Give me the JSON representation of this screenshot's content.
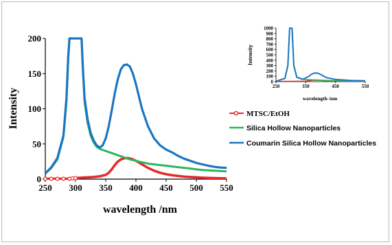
{
  "chart_data": [
    {
      "type": "line",
      "xlabel": "wavelength /nm",
      "ylabel": "Intensity",
      "xlim": [
        250,
        550
      ],
      "ylim": [
        0,
        200
      ],
      "xticks": [
        "250",
        "300",
        "350",
        "400",
        "450",
        "500",
        "550"
      ],
      "yticks": [
        "0",
        "50",
        "100",
        "150",
        "200"
      ],
      "grid": false,
      "legend_position": "right",
      "series": [
        {
          "name": "MTSC/EtOH",
          "color": "#e8262a",
          "marker": "circle-open",
          "points": [
            [
              250,
              0.5
            ],
            [
              260,
              0.5
            ],
            [
              270,
              0.5
            ],
            [
              280,
              0.5
            ],
            [
              290,
              0.6
            ],
            [
              295,
              1
            ],
            [
              300,
              1.5
            ],
            [
              310,
              2
            ],
            [
              320,
              2.5
            ],
            [
              330,
              3
            ],
            [
              340,
              4
            ],
            [
              350,
              6
            ],
            [
              355,
              9
            ],
            [
              360,
              14
            ],
            [
              365,
              20
            ],
            [
              370,
              25
            ],
            [
              375,
              28
            ],
            [
              380,
              29.5
            ],
            [
              385,
              30
            ],
            [
              390,
              29.5
            ],
            [
              395,
              28
            ],
            [
              400,
              26
            ],
            [
              410,
              21
            ],
            [
              420,
              16
            ],
            [
              430,
              12
            ],
            [
              440,
              9
            ],
            [
              450,
              7
            ],
            [
              460,
              5.5
            ],
            [
              470,
              4.5
            ],
            [
              480,
              3.5
            ],
            [
              490,
              3
            ],
            [
              500,
              2.5
            ],
            [
              510,
              2
            ],
            [
              520,
              1.8
            ],
            [
              530,
              1.5
            ],
            [
              540,
              1.2
            ],
            [
              550,
              1
            ]
          ]
        },
        {
          "name": "Silica Hollow Nanoparticles",
          "color": "#2eb55a",
          "marker": "none",
          "points": [
            [
              250,
              8
            ],
            [
              260,
              16
            ],
            [
              270,
              28
            ],
            [
              280,
              60
            ],
            [
              285,
              110
            ],
            [
              288,
              170
            ],
            [
              290,
              200
            ],
            [
              310,
              200
            ],
            [
              312,
              160
            ],
            [
              315,
              110
            ],
            [
              320,
              80
            ],
            [
              325,
              62
            ],
            [
              330,
              52
            ],
            [
              335,
              46
            ],
            [
              340,
              43
            ],
            [
              350,
              40
            ],
            [
              360,
              37
            ],
            [
              370,
              34
            ],
            [
              380,
              31
            ],
            [
              390,
              28
            ],
            [
              400,
              26
            ],
            [
              410,
              24
            ],
            [
              420,
              22
            ],
            [
              430,
              21
            ],
            [
              440,
              20
            ],
            [
              450,
              19
            ],
            [
              460,
              18
            ],
            [
              470,
              17
            ],
            [
              480,
              16
            ],
            [
              490,
              15
            ],
            [
              500,
              14
            ],
            [
              510,
              13
            ],
            [
              520,
              12.5
            ],
            [
              530,
              12
            ],
            [
              540,
              11.5
            ],
            [
              550,
              11
            ]
          ]
        },
        {
          "name": "Coumarin Silica Hollow Nanoparticles",
          "color": "#1c75c2",
          "marker": "none",
          "points": [
            [
              250,
              8
            ],
            [
              260,
              17
            ],
            [
              270,
              30
            ],
            [
              280,
              62
            ],
            [
              285,
              115
            ],
            [
              288,
              175
            ],
            [
              290,
              200
            ],
            [
              310,
              200
            ],
            [
              312,
              160
            ],
            [
              315,
              115
            ],
            [
              320,
              85
            ],
            [
              325,
              66
            ],
            [
              330,
              55
            ],
            [
              335,
              48
            ],
            [
              340,
              45
            ],
            [
              345,
              48
            ],
            [
              350,
              58
            ],
            [
              355,
              75
            ],
            [
              360,
              98
            ],
            [
              365,
              122
            ],
            [
              370,
              142
            ],
            [
              375,
              156
            ],
            [
              380,
              162
            ],
            [
              385,
              163
            ],
            [
              390,
              160
            ],
            [
              395,
              150
            ],
            [
              400,
              135
            ],
            [
              410,
              100
            ],
            [
              420,
              75
            ],
            [
              430,
              58
            ],
            [
              440,
              48
            ],
            [
              450,
              42
            ],
            [
              460,
              38
            ],
            [
              470,
              33
            ],
            [
              480,
              29
            ],
            [
              490,
              26
            ],
            [
              500,
              23
            ],
            [
              510,
              21
            ],
            [
              520,
              19
            ],
            [
              530,
              17.5
            ],
            [
              540,
              16.5
            ],
            [
              550,
              16
            ]
          ]
        }
      ]
    },
    {
      "type": "line",
      "xlabel": "wavelength /nm",
      "ylabel": "Intensity",
      "xlim": [
        250,
        550
      ],
      "ylim": [
        0,
        1000
      ],
      "xticks": [
        "250",
        "350",
        "450",
        "550"
      ],
      "yticks": [
        "0",
        "100",
        "200",
        "300",
        "400",
        "500",
        "600",
        "700",
        "800",
        "900",
        "1000"
      ],
      "grid": false,
      "series": [
        {
          "name": "MTSC/EtOH",
          "color": "#e8262a",
          "points": [
            [
              250,
              1
            ],
            [
              300,
              2
            ],
            [
              350,
              6
            ],
            [
              370,
              25
            ],
            [
              385,
              30
            ],
            [
              400,
              26
            ],
            [
              450,
              7
            ],
            [
              500,
              2.5
            ],
            [
              550,
              1
            ]
          ]
        },
        {
          "name": "Silica Hollow Nanoparticles",
          "color": "#2eb55a",
          "points": [
            [
              250,
              8
            ],
            [
              280,
              60
            ],
            [
              290,
              300
            ],
            [
              296,
              1000
            ],
            [
              304,
              1000
            ],
            [
              310,
              300
            ],
            [
              320,
              80
            ],
            [
              340,
              43
            ],
            [
              400,
              26
            ],
            [
              500,
              14
            ],
            [
              550,
              11
            ]
          ]
        },
        {
          "name": "Coumarin Silica Hollow Nanoparticles",
          "color": "#1c75c2",
          "points": [
            [
              250,
              8
            ],
            [
              280,
              62
            ],
            [
              290,
              300
            ],
            [
              296,
              1000
            ],
            [
              304,
              1000
            ],
            [
              310,
              300
            ],
            [
              320,
              85
            ],
            [
              340,
              45
            ],
            [
              360,
              98
            ],
            [
              370,
              142
            ],
            [
              380,
              162
            ],
            [
              390,
              160
            ],
            [
              400,
              135
            ],
            [
              420,
              75
            ],
            [
              450,
              42
            ],
            [
              500,
              23
            ],
            [
              550,
              16
            ]
          ]
        }
      ]
    }
  ]
}
